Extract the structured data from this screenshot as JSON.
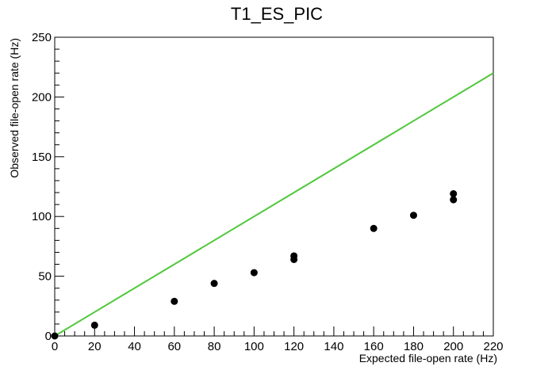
{
  "chart_data": {
    "type": "scatter",
    "title": "T1_ES_PIC",
    "xlabel": "Expected file-open rate (Hz)",
    "ylabel": "Observed file-open rate (Hz)",
    "xlim": [
      0,
      220
    ],
    "ylim": [
      0,
      250
    ],
    "x_ticks": [
      0,
      20,
      40,
      60,
      80,
      100,
      120,
      140,
      160,
      180,
      200,
      220
    ],
    "y_ticks": [
      0,
      50,
      100,
      150,
      200,
      250
    ],
    "grid": false,
    "points": [
      {
        "x": 0,
        "y": 0
      },
      {
        "x": 20,
        "y": 9
      },
      {
        "x": 60,
        "y": 29
      },
      {
        "x": 80,
        "y": 44
      },
      {
        "x": 100,
        "y": 53
      },
      {
        "x": 120,
        "y": 64
      },
      {
        "x": 120,
        "y": 67
      },
      {
        "x": 160,
        "y": 90
      },
      {
        "x": 180,
        "y": 101
      },
      {
        "x": 200,
        "y": 114
      },
      {
        "x": 200,
        "y": 119
      }
    ],
    "reference_line": {
      "x": [
        0,
        220
      ],
      "y": [
        0,
        220
      ],
      "color": "#4fc83a"
    },
    "marker_color": "#000000"
  }
}
